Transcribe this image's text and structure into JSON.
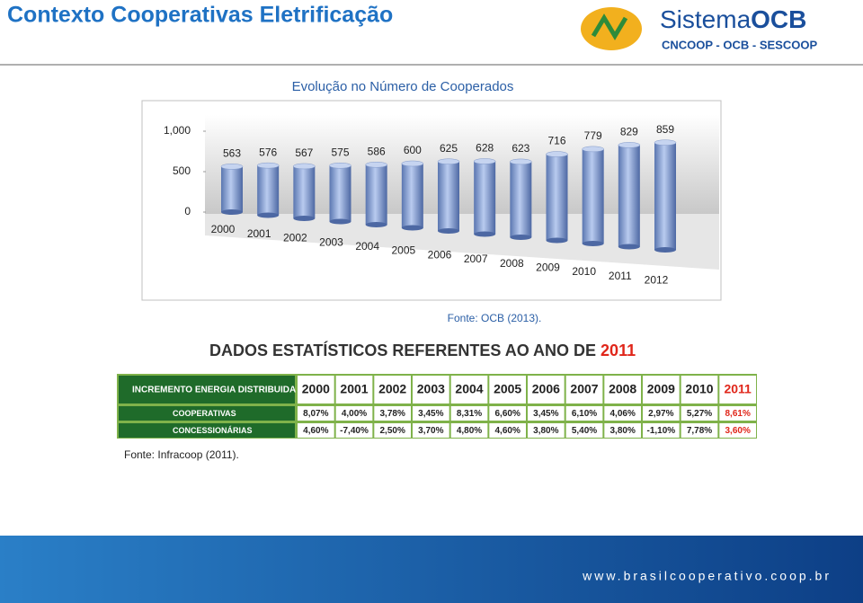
{
  "header": {
    "title": "Contexto Cooperativas Eletrificação",
    "logo_name": "Sistema",
    "logo_bold": "OCB",
    "logo_sub": "CNCOOP - OCB - SESCOOP"
  },
  "chart_data": {
    "type": "bar",
    "title": "Evolução no Número de Cooperados",
    "categories": [
      "2000",
      "2001",
      "2002",
      "2003",
      "2004",
      "2005",
      "2006",
      "2007",
      "2008",
      "2009",
      "2010",
      "2011",
      "2012"
    ],
    "values": [
      563,
      576,
      567,
      575,
      586,
      600,
      625,
      628,
      623,
      716,
      779,
      829,
      859
    ],
    "color": "#8fa8d8",
    "ylim": [
      0,
      1000
    ],
    "yticks": [
      0,
      500,
      {
        "value": 1000,
        "label": "1,000"
      }
    ]
  },
  "chart_source": "Fonte: OCB (2013).",
  "table_title": {
    "text": "DADOS ESTATÍSTICOS REFERENTES AO ANO DE",
    "year": "2011"
  },
  "table": {
    "header": [
      "INCREMENTO ENERGIA DISTRIBUIDA",
      "2000",
      "2001",
      "2002",
      "2003",
      "2004",
      "2005",
      "2006",
      "2007",
      "2008",
      "2009",
      "2010",
      "2011"
    ],
    "rows": [
      [
        "COOPERATIVAS",
        "8,07%",
        "4,00%",
        "3,78%",
        "3,45%",
        "8,31%",
        "6,60%",
        "3,45%",
        "6,10%",
        "4,06%",
        "2,97%",
        "5,27%",
        "8,61%"
      ],
      [
        "CONCESSIONÁRIAS",
        "4,60%",
        "-7,40%",
        "2,50%",
        "3,70%",
        "4,80%",
        "4,60%",
        "3,80%",
        "5,40%",
        "3,80%",
        "-1,10%",
        "7,78%",
        "3,60%"
      ]
    ]
  },
  "table_source": "Fonte: Infracoop (2011).",
  "footer_url": "www.brasilcooperativo.coop.br"
}
